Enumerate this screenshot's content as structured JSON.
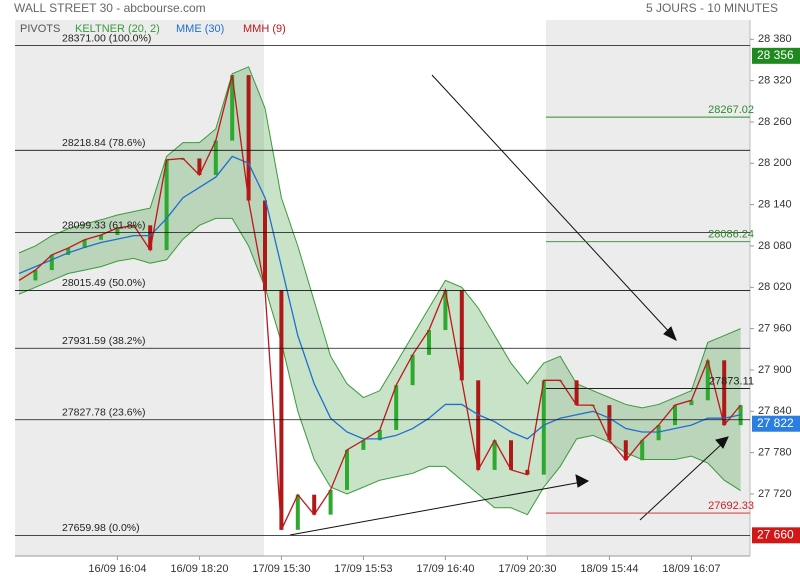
{
  "header": {
    "title": "WALL STREET 30 - abcbourse.com",
    "period": "5 JOURS - 10 MINUTES"
  },
  "legend": {
    "pivots": "PIVOTS"
  },
  "chart_data": {
    "type": "line",
    "categories": [
      null,
      null,
      null,
      null,
      null,
      null,
      "16/09 16:04",
      null,
      null,
      null,
      null,
      "16/09 18:20",
      null,
      null,
      null,
      null,
      "17/09 15:30",
      null,
      null,
      null,
      null,
      "17/09 15:53",
      null,
      null,
      null,
      null,
      "17/09 16:40",
      null,
      null,
      null,
      null,
      "17/09 20:30",
      null,
      null,
      null,
      null,
      "18/09 15:44",
      null,
      null,
      null,
      null,
      "18/09 16:07",
      null,
      null,
      null
    ],
    "series": [
      {
        "name": "KELTNER (20, 2)",
        "color": "#3a9a3a",
        "upper": [
          28070,
          28080,
          28095,
          28105,
          28112,
          28118,
          28125,
          28130,
          28135,
          28210,
          28230,
          28230,
          28250,
          28330,
          28340,
          28280,
          28150,
          28080,
          28000,
          27920,
          27880,
          27860,
          27870,
          27910,
          27950,
          27990,
          28030,
          28020,
          27990,
          27950,
          27910,
          27880,
          27910,
          27920,
          27880,
          27870,
          27860,
          27850,
          27845,
          27850,
          27860,
          27870,
          27940,
          27950,
          27960
        ],
        "lower": [
          28010,
          28020,
          28030,
          28040,
          28045,
          28050,
          28058,
          28062,
          28055,
          28060,
          28090,
          28110,
          28120,
          28120,
          28080,
          28020,
          27940,
          27840,
          27770,
          27730,
          27720,
          27730,
          27740,
          27745,
          27750,
          27760,
          27760,
          27740,
          27720,
          27700,
          27700,
          27690,
          27730,
          27760,
          27800,
          27805,
          27795,
          27780,
          27770,
          27770,
          27770,
          27775,
          27765,
          27740,
          27725
        ]
      },
      {
        "name": "MME (30)",
        "color": "#1f6fd0",
        "values": [
          28040,
          28050,
          28060,
          28070,
          28078,
          28085,
          28090,
          28095,
          28095,
          28120,
          28150,
          28165,
          28180,
          28210,
          28200,
          28150,
          28050,
          27950,
          27880,
          27830,
          27810,
          27800,
          27800,
          27805,
          27815,
          27830,
          27850,
          27850,
          27835,
          27825,
          27810,
          27800,
          27820,
          27830,
          27835,
          27840,
          27830,
          27815,
          27810,
          27810,
          27815,
          27820,
          27830,
          27830,
          27835
        ]
      },
      {
        "name": "MMH (9)",
        "color": "#c0171c",
        "values": [
          28030,
          28045,
          28067,
          28077,
          28089,
          28096,
          28106,
          28110,
          28074,
          28205,
          28207,
          28183,
          28233,
          28328,
          28146,
          28016,
          27668,
          27719,
          27690,
          27726,
          27784,
          27798,
          27813,
          27878,
          27922,
          27958,
          28016,
          27885,
          27755,
          27798,
          27755,
          27748,
          27885,
          27885,
          27849,
          27849,
          27798,
          27769,
          27798,
          27820,
          27849,
          27856,
          27914,
          27820,
          27849
        ]
      }
    ],
    "ylim": [
      27630,
      28408
    ],
    "yticks": [
      {
        "value": 28380,
        "label": "28 380"
      },
      {
        "value": 28320,
        "label": "28 320"
      },
      {
        "value": 28260,
        "label": "28 260"
      },
      {
        "value": 28200,
        "label": "28 200"
      },
      {
        "value": 28140,
        "label": "28 140"
      },
      {
        "value": 28080,
        "label": "28 080"
      },
      {
        "value": 28020,
        "label": "28 020"
      },
      {
        "value": 27960,
        "label": "27 960"
      },
      {
        "value": 27900,
        "label": "27 900"
      },
      {
        "value": 27840,
        "label": "27 840"
      },
      {
        "value": 27780,
        "label": "27 780"
      },
      {
        "value": 27720,
        "label": "27 720"
      }
    ],
    "pivots": [
      {
        "value": 28371,
        "label": "28371.00  (100.0%)"
      },
      {
        "value": 28218.84,
        "label": "28218.84  (78.6%)"
      },
      {
        "value": 28099.33,
        "label": "28099.33  (61.8%)"
      },
      {
        "value": 28015.49,
        "label": "28015.49  (50.0%)"
      },
      {
        "value": 27931.59,
        "label": "27931.59  (38.2%)"
      },
      {
        "value": 27827.78,
        "label": "27827.78  (23.6%)"
      },
      {
        "value": 27659.98,
        "label": "27659.98  (0.0%)"
      }
    ],
    "levels": [
      {
        "value": 28267.02,
        "color": "#2e8b2e"
      },
      {
        "value": 28086.24,
        "color": "#2e8b2e"
      },
      {
        "value": 27873.11,
        "color": "#222222"
      },
      {
        "value": 27692.33,
        "color": "#d02020"
      }
    ],
    "price_tags": [
      {
        "value": 28356,
        "label": "28 356",
        "color": "#1e8a1e"
      },
      {
        "value": 27822,
        "label": "27 822",
        "color": "#2a7de1"
      },
      {
        "value": 27660,
        "label": "27 660",
        "color": "#d01818"
      }
    ]
  }
}
